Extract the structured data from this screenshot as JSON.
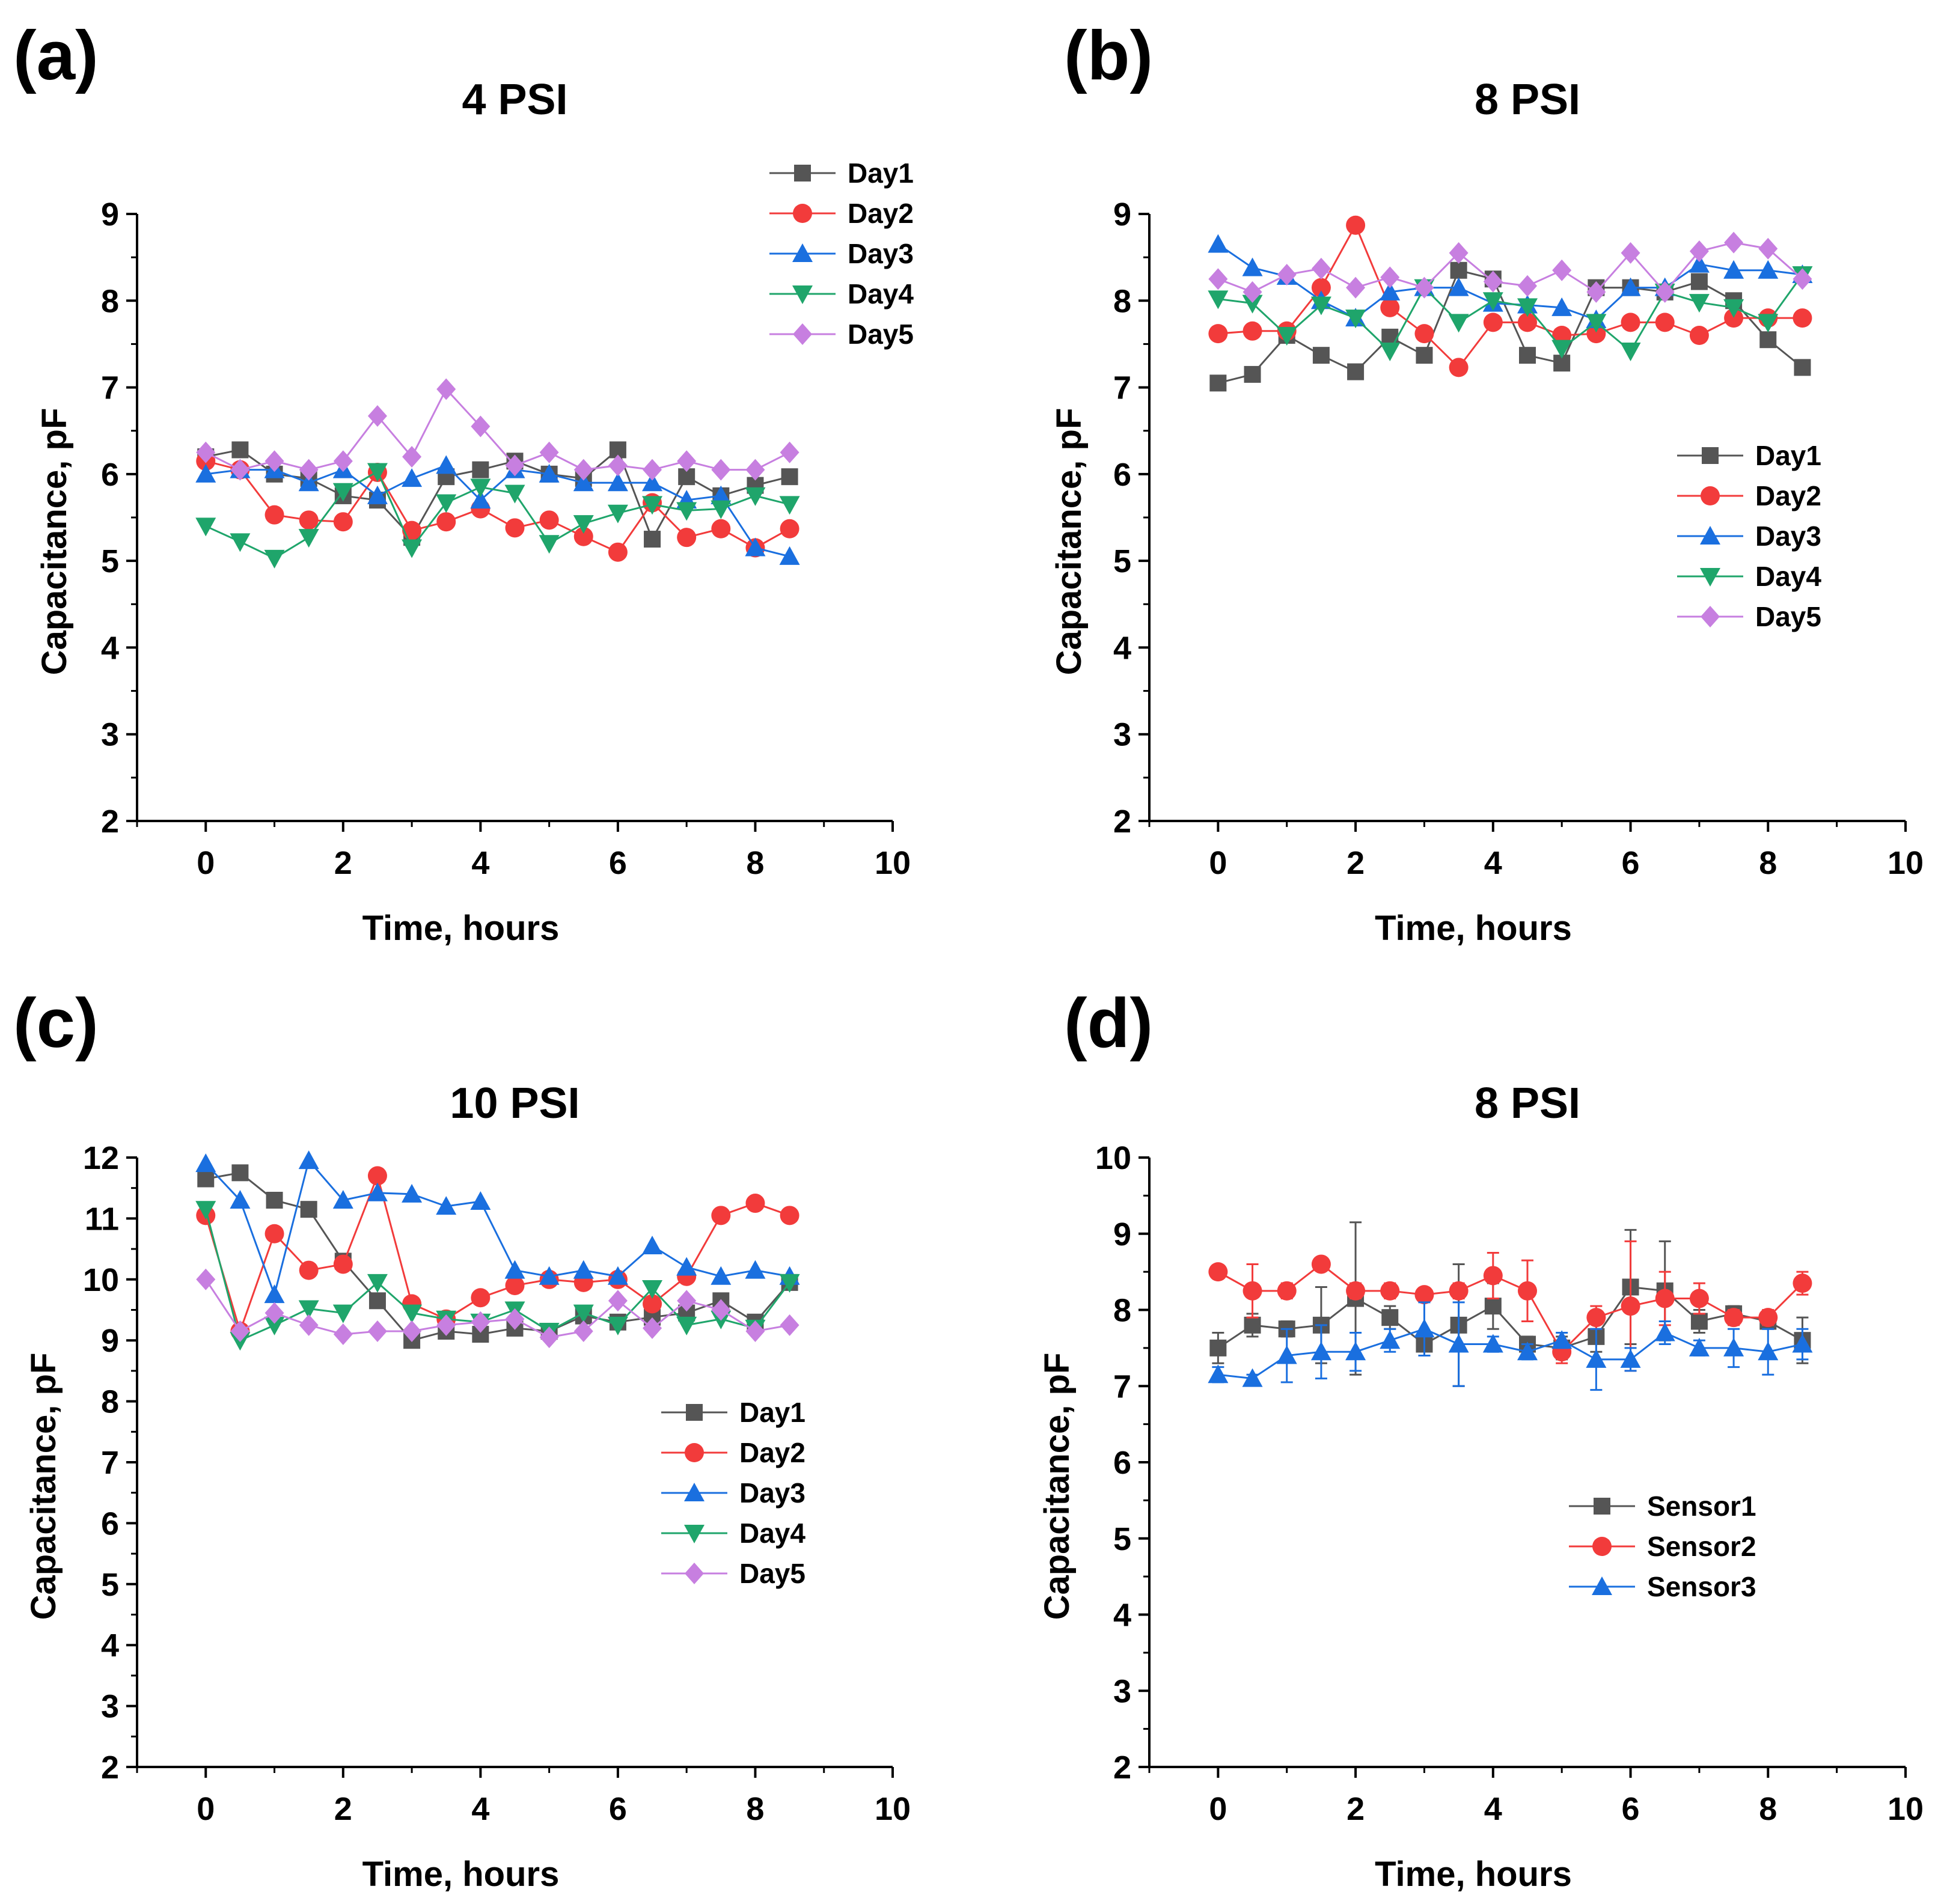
{
  "chart_data": [
    {
      "panel_label": "(a)",
      "title": "4 PSI",
      "type": "line",
      "xlabel": "Time, hours",
      "ylabel": "Capacitance, pF",
      "xlim": [
        -1,
        10
      ],
      "ylim": [
        2,
        9
      ],
      "xticks": [
        0,
        2,
        4,
        6,
        8,
        10
      ],
      "yticks": [
        2,
        3,
        4,
        5,
        6,
        7,
        8,
        9
      ],
      "legend_position": "top-right",
      "x": [
        0,
        0.5,
        1,
        1.5,
        2,
        2.5,
        3,
        3.5,
        4,
        4.5,
        5,
        5.5,
        6,
        6.5,
        7,
        7.5,
        8,
        8.5
      ],
      "series": [
        {
          "name": "Day1",
          "color": "#555555",
          "marker": "square",
          "values": [
            6.2,
            6.28,
            6.0,
            5.95,
            5.75,
            5.7,
            5.27,
            5.97,
            6.05,
            6.15,
            6.0,
            5.95,
            6.28,
            5.25,
            5.97,
            5.75,
            5.87,
            5.97
          ]
        },
        {
          "name": "Day2",
          "color": "#f23b3b",
          "marker": "circle",
          "values": [
            6.15,
            6.05,
            5.53,
            5.47,
            5.45,
            6.02,
            5.35,
            5.45,
            5.6,
            5.38,
            5.47,
            5.28,
            5.1,
            5.67,
            5.27,
            5.37,
            5.15,
            5.37
          ]
        },
        {
          "name": "Day3",
          "color": "#1a6fdf",
          "marker": "triangle-up",
          "values": [
            6.0,
            6.05,
            6.05,
            5.9,
            6.05,
            5.75,
            5.95,
            6.1,
            5.7,
            6.05,
            6.0,
            5.9,
            5.9,
            5.9,
            5.7,
            5.75,
            5.15,
            5.05
          ]
        },
        {
          "name": "Day4",
          "color": "#1fa56b",
          "marker": "triangle-down",
          "values": [
            5.4,
            5.22,
            5.03,
            5.27,
            5.8,
            6.03,
            5.15,
            5.67,
            5.85,
            5.78,
            5.2,
            5.43,
            5.55,
            5.65,
            5.58,
            5.6,
            5.75,
            5.65
          ]
        },
        {
          "name": "Day5",
          "color": "#c77fe0",
          "marker": "diamond",
          "values": [
            6.25,
            6.05,
            6.15,
            6.05,
            6.15,
            6.67,
            6.2,
            6.98,
            6.55,
            6.1,
            6.25,
            6.05,
            6.1,
            6.05,
            6.15,
            6.05,
            6.05,
            6.25
          ]
        }
      ]
    },
    {
      "panel_label": "(b)",
      "title": "8 PSI",
      "type": "line",
      "xlabel": "Time, hours",
      "ylabel": "Capacitance, pF",
      "xlim": [
        -1,
        10
      ],
      "ylim": [
        2,
        9
      ],
      "xticks": [
        0,
        2,
        4,
        6,
        8,
        10
      ],
      "yticks": [
        2,
        3,
        4,
        5,
        6,
        7,
        8,
        9
      ],
      "legend_position": "middle-right",
      "x": [
        0,
        0.5,
        1,
        1.5,
        2,
        2.5,
        3,
        3.5,
        4,
        4.5,
        5,
        5.5,
        6,
        6.5,
        7,
        7.5,
        8,
        8.5
      ],
      "series": [
        {
          "name": "Day1",
          "color": "#555555",
          "marker": "square",
          "values": [
            7.05,
            7.15,
            7.6,
            7.37,
            7.18,
            7.58,
            7.37,
            8.35,
            8.25,
            7.37,
            7.28,
            8.15,
            8.15,
            8.1,
            8.22,
            8.0,
            7.55,
            7.23
          ]
        },
        {
          "name": "Day2",
          "color": "#f23b3b",
          "marker": "circle",
          "values": [
            7.62,
            7.65,
            7.65,
            8.15,
            8.87,
            7.92,
            7.62,
            7.23,
            7.75,
            7.75,
            7.6,
            7.62,
            7.75,
            7.75,
            7.6,
            7.8,
            7.8,
            7.8
          ]
        },
        {
          "name": "Day3",
          "color": "#1a6fdf",
          "marker": "triangle-up",
          "values": [
            8.65,
            8.38,
            8.28,
            8.0,
            7.8,
            8.1,
            8.15,
            8.15,
            7.97,
            7.95,
            7.92,
            7.78,
            8.15,
            8.15,
            8.42,
            8.35,
            8.35,
            8.3
          ]
        },
        {
          "name": "Day4",
          "color": "#1fa56b",
          "marker": "triangle-down",
          "values": [
            8.02,
            7.97,
            7.6,
            7.95,
            7.8,
            7.42,
            8.15,
            7.75,
            8.0,
            7.93,
            7.45,
            7.75,
            7.42,
            8.1,
            7.98,
            7.92,
            7.75,
            8.3
          ]
        },
        {
          "name": "Day5",
          "color": "#c77fe0",
          "marker": "diamond",
          "values": [
            8.25,
            8.1,
            8.3,
            8.37,
            8.15,
            8.27,
            8.15,
            8.55,
            8.22,
            8.17,
            8.35,
            8.1,
            8.55,
            8.1,
            8.57,
            8.67,
            8.6,
            8.25
          ]
        }
      ]
    },
    {
      "panel_label": "(c)",
      "title": "10 PSI",
      "type": "line",
      "xlabel": "Time, hours",
      "ylabel": "Capacitance, pF",
      "xlim": [
        -1,
        10
      ],
      "ylim": [
        2,
        12
      ],
      "xticks": [
        0,
        2,
        4,
        6,
        8,
        10
      ],
      "yticks": [
        2,
        3,
        4,
        5,
        6,
        7,
        8,
        9,
        10,
        11,
        12
      ],
      "legend_position": "middle-right",
      "x": [
        0,
        0.5,
        1,
        1.5,
        2,
        2.5,
        3,
        3.5,
        4,
        4.5,
        5,
        5.5,
        6,
        6.5,
        7,
        7.5,
        8,
        8.5
      ],
      "series": [
        {
          "name": "Day1",
          "color": "#555555",
          "marker": "square",
          "values": [
            11.65,
            11.75,
            11.3,
            11.15,
            10.3,
            9.65,
            9.0,
            9.15,
            9.1,
            9.2,
            9.15,
            9.4,
            9.3,
            9.38,
            9.45,
            9.65,
            9.3,
            9.95
          ]
        },
        {
          "name": "Day2",
          "color": "#f23b3b",
          "marker": "circle",
          "values": [
            11.05,
            9.15,
            10.75,
            10.15,
            10.25,
            11.7,
            9.6,
            9.35,
            9.7,
            9.9,
            10.0,
            9.95,
            10.0,
            9.6,
            10.05,
            11.05,
            11.25,
            11.05
          ]
        },
        {
          "name": "Day3",
          "color": "#1a6fdf",
          "marker": "triangle-up",
          "values": [
            11.9,
            11.3,
            9.75,
            11.95,
            11.3,
            11.42,
            11.4,
            11.2,
            11.28,
            10.15,
            10.05,
            10.15,
            10.05,
            10.55,
            10.2,
            10.05,
            10.15,
            10.05
          ]
        },
        {
          "name": "Day4",
          "color": "#1fa56b",
          "marker": "triangle-down",
          "values": [
            11.15,
            9.0,
            9.25,
            9.52,
            9.45,
            9.95,
            9.45,
            9.35,
            9.3,
            9.5,
            9.15,
            9.45,
            9.25,
            9.85,
            9.25,
            9.35,
            9.2,
            9.95
          ]
        },
        {
          "name": "Day5",
          "color": "#c77fe0",
          "marker": "diamond",
          "values": [
            10.0,
            9.15,
            9.45,
            9.25,
            9.1,
            9.15,
            9.15,
            9.25,
            9.3,
            9.35,
            9.05,
            9.15,
            9.65,
            9.2,
            9.65,
            9.5,
            9.15,
            9.25
          ]
        }
      ]
    },
    {
      "panel_label": "(d)",
      "title": "8 PSI",
      "type": "line",
      "xlabel": "Time, hours",
      "ylabel": "Capacitance, pF",
      "xlim": [
        -1,
        10
      ],
      "ylim": [
        2,
        10
      ],
      "xticks": [
        0,
        2,
        4,
        6,
        8,
        10
      ],
      "yticks": [
        2,
        3,
        4,
        5,
        6,
        7,
        8,
        9,
        10
      ],
      "legend_position": "middle-right",
      "error_bars": true,
      "x": [
        0,
        0.5,
        1,
        1.5,
        2,
        2.5,
        3,
        3.5,
        4,
        4.5,
        5,
        5.5,
        6,
        6.5,
        7,
        7.5,
        8,
        8.5
      ],
      "series": [
        {
          "name": "Sensor1",
          "color": "#555555",
          "marker": "square",
          "values": [
            7.5,
            7.8,
            7.75,
            7.8,
            8.15,
            7.9,
            7.55,
            7.8,
            8.05,
            7.55,
            7.5,
            7.65,
            8.3,
            8.25,
            7.85,
            7.95,
            7.85,
            7.6
          ],
          "errors": [
            0.2,
            0.15,
            0.1,
            0.5,
            1.0,
            0.15,
            0.15,
            0.8,
            0.3,
            0.1,
            0.15,
            0.2,
            0.75,
            0.65,
            0.15,
            0.1,
            0.1,
            0.3
          ]
        },
        {
          "name": "Sensor2",
          "color": "#f23b3b",
          "marker": "circle",
          "values": [
            8.5,
            8.25,
            8.25,
            8.6,
            8.25,
            8.25,
            8.2,
            8.25,
            8.45,
            8.25,
            7.45,
            7.9,
            8.05,
            8.15,
            8.15,
            7.9,
            7.9,
            8.35
          ],
          "errors": [
            0.05,
            0.35,
            0.1,
            0.05,
            0.1,
            0.1,
            0.05,
            0.1,
            0.3,
            0.4,
            0.15,
            0.15,
            0.85,
            0.35,
            0.2,
            0.1,
            0.1,
            0.15
          ]
        },
        {
          "name": "Sensor3",
          "color": "#1a6fdf",
          "marker": "triangle-up",
          "values": [
            7.15,
            7.1,
            7.4,
            7.45,
            7.45,
            7.6,
            7.75,
            7.55,
            7.55,
            7.45,
            7.6,
            7.35,
            7.35,
            7.7,
            7.5,
            7.5,
            7.45,
            7.55
          ],
          "errors": [
            0.1,
            0.05,
            0.35,
            0.35,
            0.25,
            0.15,
            0.35,
            0.55,
            0.1,
            0.1,
            0.1,
            0.4,
            0.15,
            0.15,
            0.1,
            0.25,
            0.3,
            0.2
          ]
        }
      ]
    }
  ]
}
